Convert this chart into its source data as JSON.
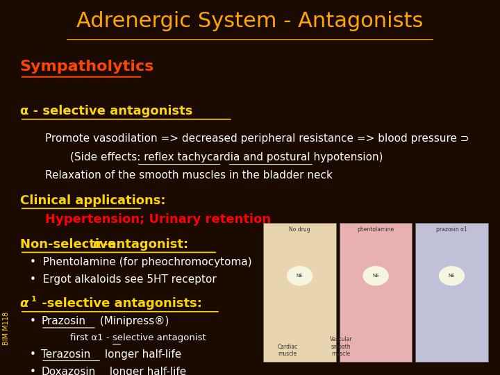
{
  "title": "Adrenergic System - Antagonists",
  "title_color": "#FFA500",
  "title_fontsize": 22,
  "bg_color": "#1a0a00",
  "section1_label": "Sympatholytics",
  "section1_color": "#FF4500",
  "section1_fontsize": 16,
  "alpha_section_label": "α - selective antagonists",
  "alpha_section_color": "#FFD700",
  "alpha_section_fontsize": 13,
  "body_color": "#FFFFFF",
  "body_fontsize": 11,
  "line1": "Promote vasodilation => decreased peripheral resistance => blood pressure ⊃",
  "line2": "(Side effects: reflex tachycardia and postural hypotension)",
  "line3": "Relaxation of the smooth muscles in the bladder neck",
  "clinical_label": "Clinical applications:",
  "clinical_color": "#FFD700",
  "clinical_fontsize": 13,
  "clinical_value": "Hypertension; Urinary retention",
  "clinical_value_color": "#FF0000",
  "clinical_value_fontsize": 13,
  "nonselective_color": "#FFD700",
  "nonselective_fontsize": 13,
  "bullet1": "Phentolamine (for pheochromocytoma)",
  "bullet2": "Ergot alkaloids see 5HT receptor",
  "alpha1_color": "#FFD700",
  "alpha1_fontsize": 13,
  "sub_bullet": "first α1 - selective antagonist",
  "bullet4": "Terazosin longer half-life",
  "bullet5": "Doxazosin longer half-life",
  "sidebar_text": "BIM M118",
  "sidebar_color": "#FFD700",
  "panel_colors": [
    "#e8d5b0",
    "#e8b0b0",
    "#c0c0d8"
  ],
  "panel_labels": [
    "No drug",
    "phentolamine",
    "prazosin α1"
  ]
}
